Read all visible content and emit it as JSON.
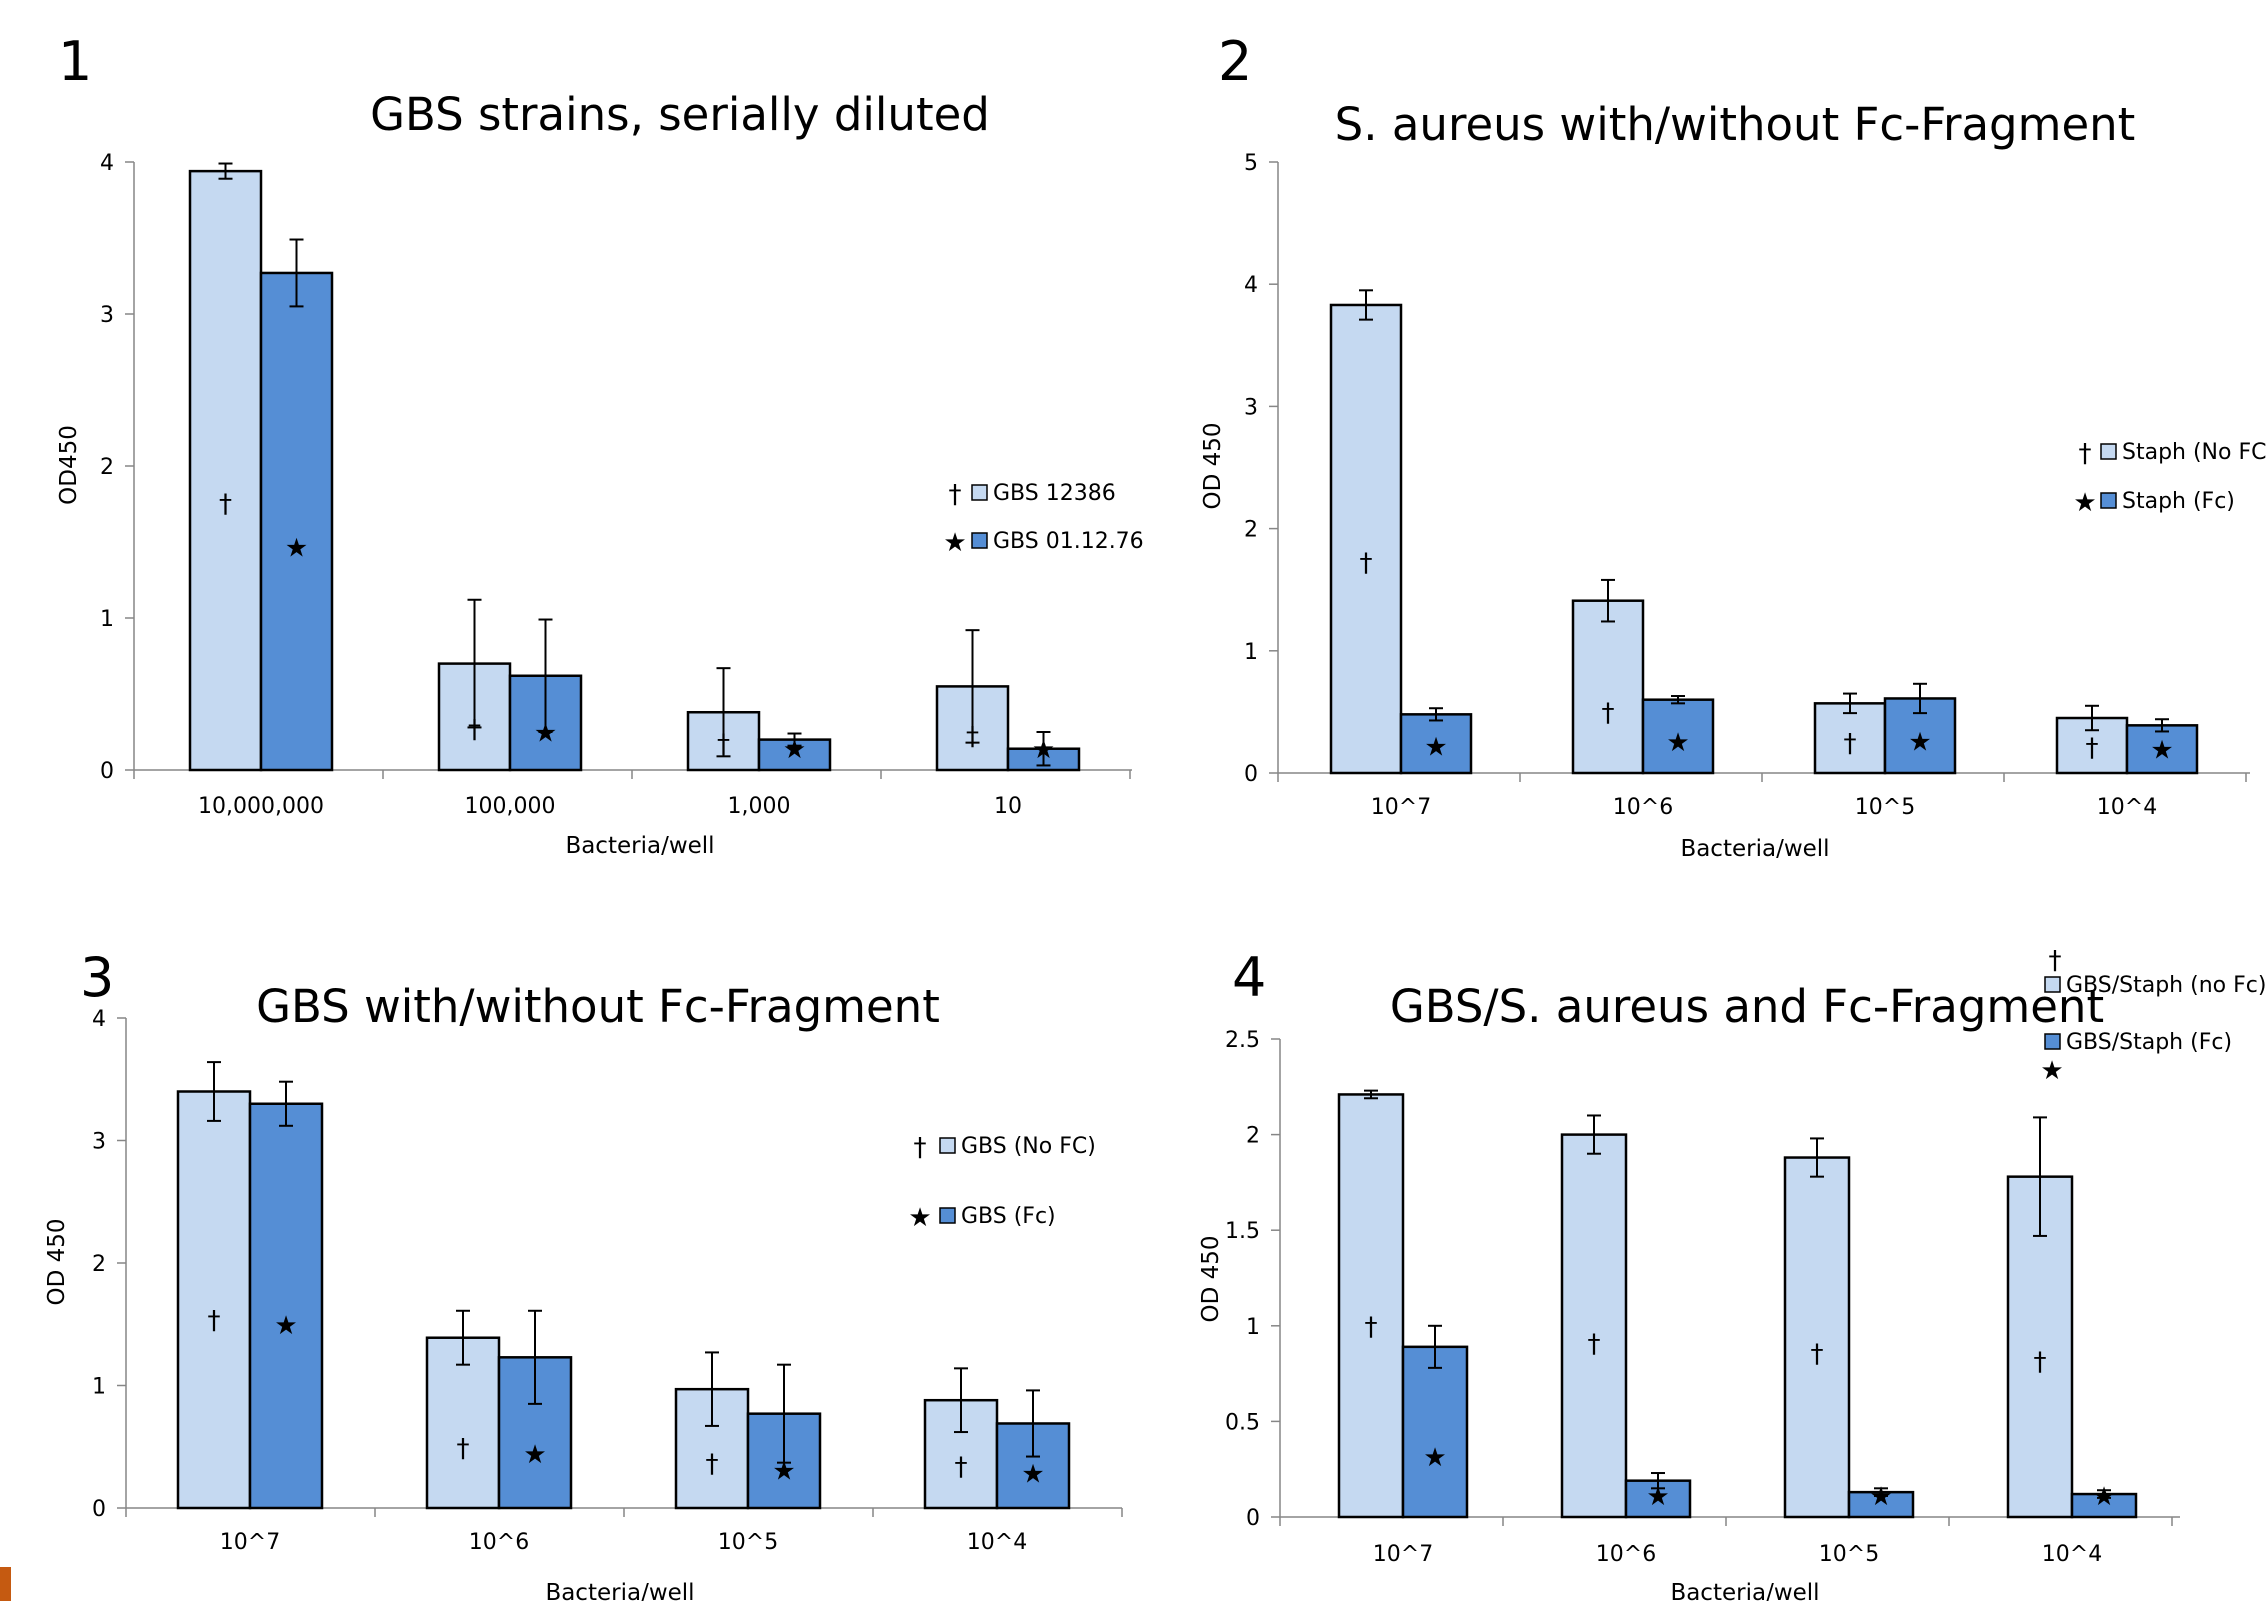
{
  "colors": {
    "light_bar": "#c5d9f1",
    "dark_bar": "#558ed5",
    "accent": "#c55a11"
  },
  "chart_data": [
    {
      "type": "bar",
      "panel": "1",
      "title": "GBS strains, serially diluted",
      "xlabel": "Bacteria/well",
      "ylabel": "OD450",
      "ylim": [
        0,
        4
      ],
      "yticks": [
        "0",
        "1",
        "2",
        "3",
        "4"
      ],
      "categories": [
        "10,000,000",
        "100,000",
        "1,000",
        "10"
      ],
      "series": [
        {
          "name": "GBS 12386",
          "marker": "†",
          "color": "#c5d9f1",
          "values": [
            3.94,
            0.7,
            0.38,
            0.55
          ],
          "errors": [
            0.05,
            0.42,
            0.29,
            0.37
          ]
        },
        {
          "name": "GBS 01.12.76",
          "marker": "★",
          "color": "#558ed5",
          "values": [
            3.27,
            0.62,
            0.2,
            0.14
          ],
          "errors": [
            0.22,
            0.37,
            0.04,
            0.11
          ]
        }
      ]
    },
    {
      "type": "bar",
      "panel": "2",
      "title": "S. aureus with/without Fc-Fragment",
      "xlabel": "Bacteria/well",
      "ylabel": "OD 450",
      "ylim": [
        0,
        5
      ],
      "yticks": [
        "0",
        "1",
        "2",
        "3",
        "4",
        "5"
      ],
      "categories": [
        "10^7",
        "10^6",
        "10^5",
        "10^4"
      ],
      "series": [
        {
          "name": "Staph (No FC)",
          "marker": "†",
          "color": "#c5d9f1",
          "values": [
            3.83,
            1.41,
            0.57,
            0.45
          ],
          "errors": [
            0.12,
            0.17,
            0.08,
            0.1
          ]
        },
        {
          "name": "Staph (Fc)",
          "marker": "★",
          "color": "#558ed5",
          "values": [
            0.48,
            0.6,
            0.61,
            0.39
          ],
          "errors": [
            0.05,
            0.03,
            0.12,
            0.05
          ]
        }
      ]
    },
    {
      "type": "bar",
      "panel": "3",
      "title": "GBS with/without Fc-Fragment",
      "xlabel": "Bacteria/well",
      "ylabel": "OD 450",
      "ylim": [
        0,
        4
      ],
      "yticks": [
        "0",
        "1",
        "2",
        "3",
        "4"
      ],
      "categories": [
        "10^7",
        "10^6",
        "10^5",
        "10^4"
      ],
      "series": [
        {
          "name": "GBS (No FC)",
          "marker": "†",
          "color": "#c5d9f1",
          "values": [
            3.4,
            1.39,
            0.97,
            0.88
          ],
          "errors": [
            0.24,
            0.22,
            0.3,
            0.26
          ]
        },
        {
          "name": "GBS (Fc)",
          "marker": "★",
          "color": "#558ed5",
          "values": [
            3.3,
            1.23,
            0.77,
            0.69
          ],
          "errors": [
            0.18,
            0.38,
            0.4,
            0.27
          ]
        }
      ]
    },
    {
      "type": "bar",
      "panel": "4",
      "title": "GBS/S. aureus and Fc-Fragment",
      "xlabel": "Bacteria/well",
      "ylabel": "OD 450",
      "ylim": [
        0,
        2.5
      ],
      "yticks": [
        "0",
        "0.5",
        "1",
        "1.5",
        "2",
        "2.5"
      ],
      "categories": [
        "10^7",
        "10^6",
        "10^5",
        "10^4"
      ],
      "series": [
        {
          "name": "GBS/Staph (no Fc)",
          "marker": "†",
          "color": "#c5d9f1",
          "values": [
            2.21,
            2.0,
            1.88,
            1.78
          ],
          "errors": [
            0.02,
            0.1,
            0.1,
            0.31
          ]
        },
        {
          "name": "GBS/Staph (Fc)",
          "marker": "★",
          "color": "#558ed5",
          "values": [
            0.89,
            0.19,
            0.13,
            0.12
          ],
          "errors": [
            0.11,
            0.04,
            0.02,
            0.02
          ]
        }
      ]
    }
  ]
}
